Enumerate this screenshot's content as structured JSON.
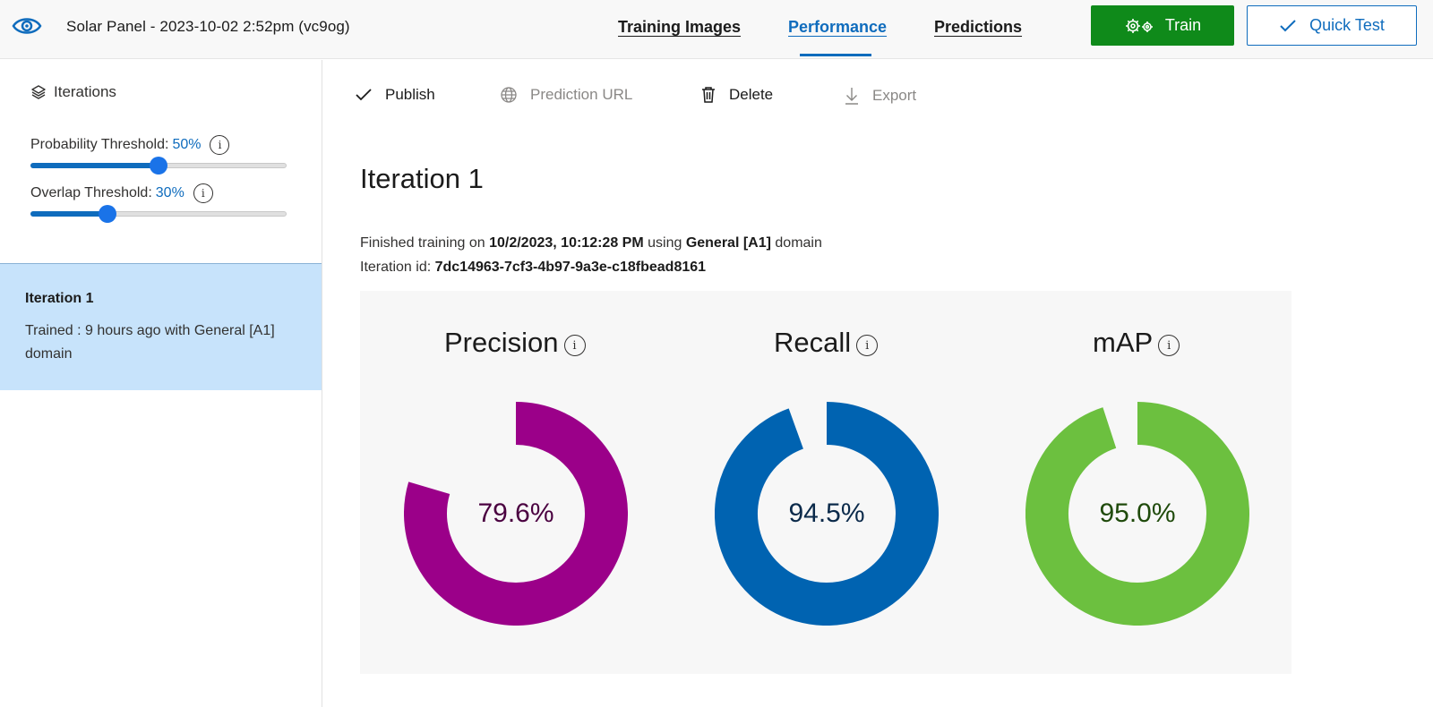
{
  "header": {
    "project_title": "Solar Panel - 2023-10-02 2:52pm (vc9og)",
    "nav": [
      {
        "label": "Training Images",
        "active": false
      },
      {
        "label": "Performance",
        "active": true
      },
      {
        "label": "Predictions",
        "active": false
      }
    ],
    "train_label": "Train",
    "quick_test_label": "Quick Test",
    "accent_color": "#0f6cbd",
    "train_color": "#0f8a1a"
  },
  "sidebar": {
    "iterations_label": "Iterations",
    "probability": {
      "label": "Probability Threshold:",
      "value": "50%",
      "fraction": 0.5
    },
    "overlap": {
      "label": "Overlap Threshold:",
      "value": "30%",
      "fraction": 0.3
    },
    "selected_iteration": {
      "name": "Iteration 1",
      "description": "Trained : 9 hours ago with General [A1] domain"
    }
  },
  "toolbar": {
    "publish": "Publish",
    "prediction_url": "Prediction URL",
    "delete": "Delete",
    "export": "Export"
  },
  "main": {
    "iteration_title": "Iteration 1",
    "finished_prefix": "Finished training on",
    "finished_date": "10/2/2023, 10:12:28 PM",
    "finished_middle": "using",
    "domain": "General [A1]",
    "finished_suffix": "domain",
    "iteration_id_label": "Iteration id:",
    "iteration_id": "7dc14963-7cf3-4b97-9a3e-c18fbead8161"
  },
  "metrics": [
    {
      "label": "Precision",
      "value": 79.6,
      "display": "79.6%",
      "color": "#9b0089",
      "text_color": "#4a0040"
    },
    {
      "label": "Recall",
      "value": 94.5,
      "display": "94.5%",
      "color": "#0063b1",
      "text_color": "#0b2a4a"
    },
    {
      "label": "mAP",
      "value": 95.0,
      "display": "95.0%",
      "color": "#6cc03f",
      "text_color": "#1f4a0b"
    }
  ]
}
